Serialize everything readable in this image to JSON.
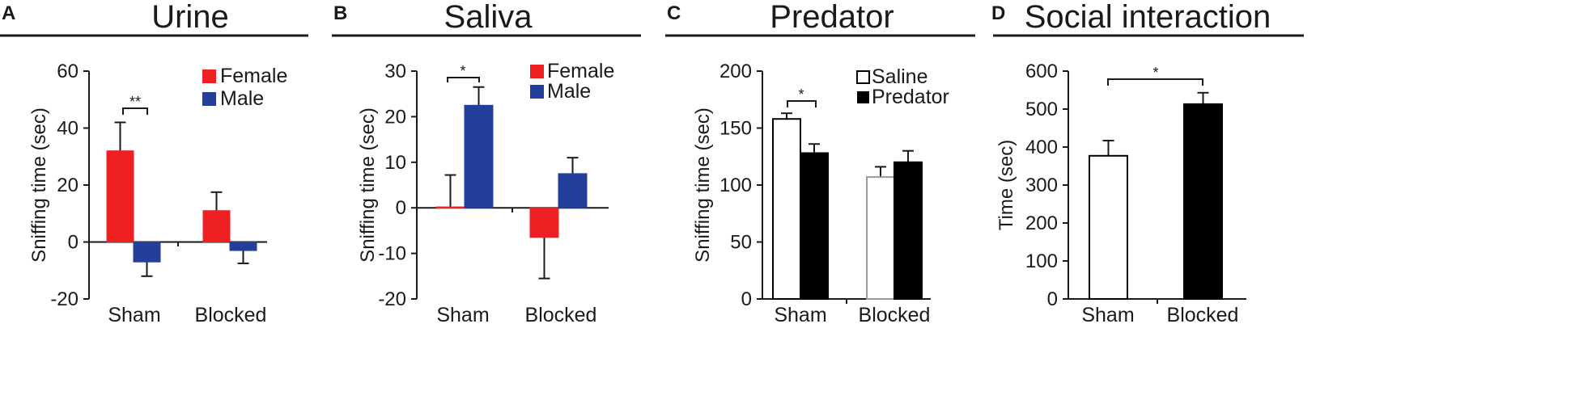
{
  "chart_data": [
    {
      "type": "bar",
      "panel": "A",
      "title": "Urine",
      "xlabel": "",
      "ylabel": "Sniffing time (sec)",
      "ylim": [
        -20,
        60
      ],
      "yticks": [
        -20,
        0,
        20,
        40,
        60
      ],
      "ytick_labels": [
        "-20",
        "0",
        "20",
        "40",
        "60"
      ],
      "categories": [
        "Sham",
        "Blocked"
      ],
      "series": [
        {
          "name": "Female",
          "color": "#ee2024",
          "fill": "#ee2024",
          "values": [
            32,
            11
          ],
          "errors": [
            10,
            6.5
          ]
        },
        {
          "name": "Male",
          "color": "#243f99",
          "fill": "#243f99",
          "values": [
            -7,
            -3
          ],
          "errors": [
            5,
            4.5
          ]
        }
      ],
      "legend_position": "top-right",
      "significance": [
        {
          "label": "**",
          "category": "Sham",
          "between": "series"
        }
      ]
    },
    {
      "type": "bar",
      "panel": "B",
      "title": "Saliva",
      "xlabel": "",
      "ylabel": "Sniffing time (sec)",
      "ylim": [
        -20,
        30
      ],
      "yticks": [
        -20,
        -10,
        0,
        10,
        20,
        30
      ],
      "ytick_labels": [
        "-20",
        "-10",
        "0",
        "10",
        "20",
        "30"
      ],
      "categories": [
        "Sham",
        "Blocked"
      ],
      "series": [
        {
          "name": "Female",
          "color": "#ee2024",
          "fill": "#ee2024",
          "values": [
            0.2,
            -6.5
          ],
          "errors": [
            7,
            9
          ]
        },
        {
          "name": "Male",
          "color": "#243f99",
          "fill": "#243f99",
          "values": [
            22.5,
            7.5
          ],
          "errors": [
            4,
            3.5
          ]
        }
      ],
      "legend_position": "top-right",
      "significance": [
        {
          "label": "*",
          "category": "Sham",
          "between": "series"
        }
      ]
    },
    {
      "type": "bar",
      "panel": "C",
      "title": "Predator",
      "xlabel": "",
      "ylabel": "Sniffing time (sec)",
      "ylim": [
        0,
        200
      ],
      "yticks": [
        0,
        50,
        100,
        150,
        200
      ],
      "ytick_labels": [
        "0",
        "50",
        "100",
        "150",
        "200"
      ],
      "categories": [
        "Sham",
        "Blocked"
      ],
      "series": [
        {
          "name": "Saline",
          "color": "#000000",
          "fill": "#ffffff",
          "values": [
            158,
            107
          ],
          "errors": [
            5,
            9
          ]
        },
        {
          "name": "Predator",
          "color": "#000000",
          "fill": "#000000",
          "values": [
            128,
            120
          ],
          "errors": [
            8,
            10
          ]
        }
      ],
      "legend_position": "top-right",
      "legend_style": "square-glyph",
      "significance": [
        {
          "label": "*",
          "category": "Sham",
          "between": "series"
        }
      ]
    },
    {
      "type": "bar",
      "panel": "D",
      "title": "Social interaction",
      "xlabel": "",
      "ylabel": "Time (sec)",
      "ylim": [
        0,
        600
      ],
      "yticks": [
        0,
        100,
        200,
        300,
        400,
        500,
        600
      ],
      "ytick_labels": [
        "0",
        "100",
        "200",
        "300",
        "400",
        "500",
        "600"
      ],
      "categories": [
        "Sham",
        "Blocked"
      ],
      "series": [
        {
          "name": "Time",
          "values": [
            377,
            513
          ],
          "errors": [
            40,
            30
          ],
          "fills": [
            "#ffffff",
            "#000000"
          ],
          "color": "#000000"
        }
      ],
      "legend_position": "none",
      "significance": [
        {
          "label": "*",
          "between": "categories"
        }
      ]
    }
  ]
}
